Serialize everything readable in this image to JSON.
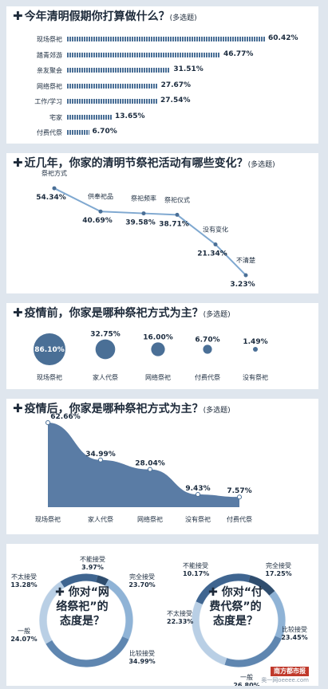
{
  "q1": {
    "title": "今年清明假期你打算做什么？",
    "note": "(多选题)",
    "chart_data": {
      "type": "bar",
      "categories": [
        "现场祭祀",
        "踏青郊游",
        "亲友聚会",
        "网络祭祀",
        "工作/学习",
        "宅家",
        "付费代祭"
      ],
      "values": [
        60.42,
        46.77,
        31.51,
        27.67,
        27.54,
        13.65,
        6.7
      ],
      "value_labels": [
        "60.42%",
        "46.77%",
        "31.51%",
        "27.67%",
        "27.54%",
        "13.65%",
        "6.70%"
      ]
    }
  },
  "q2": {
    "title": "近几年，你家的清明节祭祀活动有哪些变化？",
    "note": "(多选题)",
    "chart_data": {
      "type": "line",
      "categories": [
        "祭祀方式",
        "供奉祀品",
        "祭祀频率",
        "祭祀仪式",
        "没有变化",
        "不清楚"
      ],
      "values": [
        54.34,
        40.69,
        39.58,
        38.71,
        21.34,
        3.23
      ],
      "value_labels": [
        "54.34%",
        "40.69%",
        "39.58%",
        "38.71%",
        "21.34%",
        "3.23%"
      ]
    }
  },
  "q3": {
    "title": "疫情前，你家是哪种祭祀方式为主？",
    "note": "(多选题)",
    "chart_data": {
      "type": "scatter",
      "categories": [
        "现场祭祀",
        "家人代祭",
        "网络祭祀",
        "付费代祭",
        "没有祭祀"
      ],
      "values": [
        86.1,
        32.75,
        16.0,
        6.7,
        1.49
      ],
      "value_labels": [
        "86.10%",
        "32.75%",
        "16.00%",
        "6.70%",
        "1.49%"
      ]
    }
  },
  "q4": {
    "title": "疫情后，你家是哪种祭祀方式为主？",
    "note": "(多选题)",
    "chart_data": {
      "type": "area",
      "categories": [
        "现场祭祀",
        "家人代祭",
        "网络祭祀",
        "没有祭祀",
        "付费代祭"
      ],
      "values": [
        62.66,
        34.99,
        28.04,
        9.43,
        7.57
      ],
      "value_labels": [
        "62.66%",
        "34.99%",
        "28.04%",
        "9.43%",
        "7.57%"
      ]
    }
  },
  "q5": {
    "question_lines": [
      "你对“网",
      "络祭祀”的",
      "态度是？"
    ],
    "chart_data": {
      "type": "pie",
      "categories": [
        "不能接受",
        "完全接受",
        "比较接受",
        "一般",
        "不太接受"
      ],
      "values": [
        3.97,
        23.7,
        34.99,
        24.07,
        13.28
      ],
      "value_labels": [
        "3.97%",
        "23.70%",
        "34.99%",
        "24.07%",
        "13.28%"
      ]
    }
  },
  "q6": {
    "question_lines": [
      "你对“付",
      "费代祭”的",
      "态度是？"
    ],
    "chart_data": {
      "type": "pie",
      "categories": [
        "不能接受",
        "完全接受",
        "比较接受",
        "一般",
        "不太接受"
      ],
      "values": [
        10.17,
        17.25,
        23.45,
        26.8,
        22.33
      ],
      "value_labels": [
        "10.17%",
        "17.25%",
        "23.45%",
        "26.80%",
        "22.33%"
      ]
    }
  },
  "plus_symbol": "✚",
  "logo": {
    "name": "南方都市报",
    "site": "奥一网oeeee.com"
  }
}
